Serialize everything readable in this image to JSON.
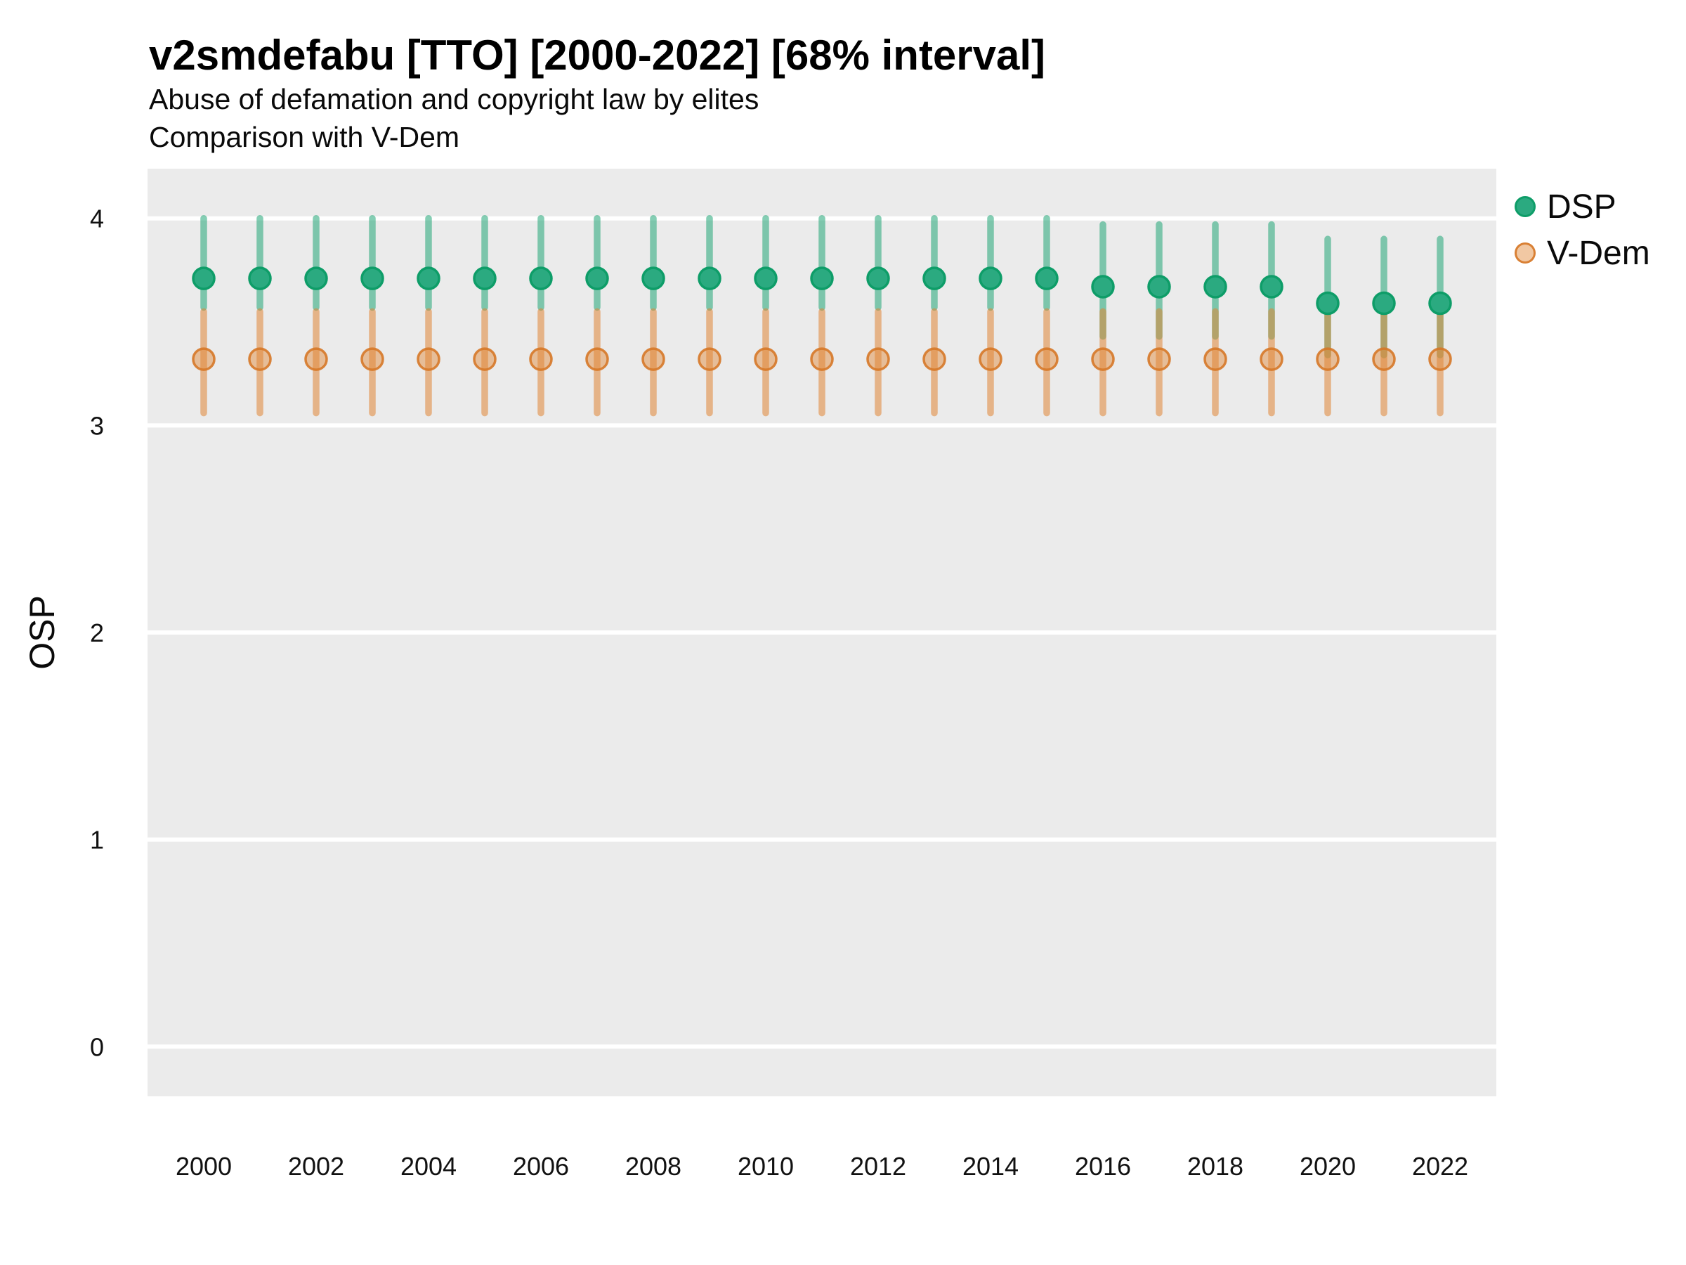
{
  "chart_data": {
    "type": "pointrange",
    "title": "v2smdefabu [TTO] [2000-2022] [68% interval]",
    "subtitle": "Abuse of defamation and copyright law by elites",
    "subtitle2": "Comparison with V-Dem",
    "ylabel": "OSP",
    "xlabel": "",
    "interval": "68%",
    "xlim": [
      1999,
      2023
    ],
    "ylim": [
      -0.24,
      4.24
    ],
    "xticks": [
      2000,
      2002,
      2004,
      2006,
      2008,
      2010,
      2012,
      2014,
      2016,
      2018,
      2020,
      2022
    ],
    "yticks": [
      0,
      1,
      2,
      3,
      4
    ],
    "grid": "major-horizontal-only",
    "panel_bg": "#EBEBEB",
    "gridline_color": "#FFFFFF",
    "legend_position": "right",
    "series": [
      {
        "name": "DSP",
        "point_fill": "#2BAA80",
        "point_stroke": "#0E9D68",
        "line_color": "rgba(33,166,118,0.55)",
        "points": [
          {
            "year": 2000,
            "est": 3.71,
            "lo": 3.57,
            "hi": 4.0
          },
          {
            "year": 2001,
            "est": 3.71,
            "lo": 3.57,
            "hi": 4.0
          },
          {
            "year": 2002,
            "est": 3.71,
            "lo": 3.57,
            "hi": 4.0
          },
          {
            "year": 2003,
            "est": 3.71,
            "lo": 3.57,
            "hi": 4.0
          },
          {
            "year": 2004,
            "est": 3.71,
            "lo": 3.57,
            "hi": 4.0
          },
          {
            "year": 2005,
            "est": 3.71,
            "lo": 3.57,
            "hi": 4.0
          },
          {
            "year": 2006,
            "est": 3.71,
            "lo": 3.57,
            "hi": 4.0
          },
          {
            "year": 2007,
            "est": 3.71,
            "lo": 3.57,
            "hi": 4.0
          },
          {
            "year": 2008,
            "est": 3.71,
            "lo": 3.57,
            "hi": 4.0
          },
          {
            "year": 2009,
            "est": 3.71,
            "lo": 3.57,
            "hi": 4.0
          },
          {
            "year": 2010,
            "est": 3.71,
            "lo": 3.57,
            "hi": 4.0
          },
          {
            "year": 2011,
            "est": 3.71,
            "lo": 3.57,
            "hi": 4.0
          },
          {
            "year": 2012,
            "est": 3.71,
            "lo": 3.57,
            "hi": 4.0
          },
          {
            "year": 2013,
            "est": 3.71,
            "lo": 3.57,
            "hi": 4.0
          },
          {
            "year": 2014,
            "est": 3.71,
            "lo": 3.57,
            "hi": 4.0
          },
          {
            "year": 2015,
            "est": 3.71,
            "lo": 3.57,
            "hi": 4.0
          },
          {
            "year": 2016,
            "est": 3.67,
            "lo": 3.43,
            "hi": 3.97
          },
          {
            "year": 2017,
            "est": 3.67,
            "lo": 3.43,
            "hi": 3.97
          },
          {
            "year": 2018,
            "est": 3.67,
            "lo": 3.43,
            "hi": 3.97
          },
          {
            "year": 2019,
            "est": 3.67,
            "lo": 3.43,
            "hi": 3.97
          },
          {
            "year": 2020,
            "est": 3.59,
            "lo": 3.34,
            "hi": 3.9
          },
          {
            "year": 2021,
            "est": 3.59,
            "lo": 3.34,
            "hi": 3.9
          },
          {
            "year": 2022,
            "est": 3.59,
            "lo": 3.34,
            "hi": 3.9
          }
        ]
      },
      {
        "name": "V-Dem",
        "point_fill": "rgba(224,133,52,0.45)",
        "point_stroke": "rgba(214,120,40,0.9)",
        "line_color": "rgba(224,133,52,0.55)",
        "points": [
          {
            "year": 2000,
            "est": 3.32,
            "lo": 3.06,
            "hi": 3.55
          },
          {
            "year": 2001,
            "est": 3.32,
            "lo": 3.06,
            "hi": 3.55
          },
          {
            "year": 2002,
            "est": 3.32,
            "lo": 3.06,
            "hi": 3.55
          },
          {
            "year": 2003,
            "est": 3.32,
            "lo": 3.06,
            "hi": 3.55
          },
          {
            "year": 2004,
            "est": 3.32,
            "lo": 3.06,
            "hi": 3.55
          },
          {
            "year": 2005,
            "est": 3.32,
            "lo": 3.06,
            "hi": 3.55
          },
          {
            "year": 2006,
            "est": 3.32,
            "lo": 3.06,
            "hi": 3.55
          },
          {
            "year": 2007,
            "est": 3.32,
            "lo": 3.06,
            "hi": 3.55
          },
          {
            "year": 2008,
            "est": 3.32,
            "lo": 3.06,
            "hi": 3.55
          },
          {
            "year": 2009,
            "est": 3.32,
            "lo": 3.06,
            "hi": 3.55
          },
          {
            "year": 2010,
            "est": 3.32,
            "lo": 3.06,
            "hi": 3.55
          },
          {
            "year": 2011,
            "est": 3.32,
            "lo": 3.06,
            "hi": 3.55
          },
          {
            "year": 2012,
            "est": 3.32,
            "lo": 3.06,
            "hi": 3.55
          },
          {
            "year": 2013,
            "est": 3.32,
            "lo": 3.06,
            "hi": 3.55
          },
          {
            "year": 2014,
            "est": 3.32,
            "lo": 3.06,
            "hi": 3.55
          },
          {
            "year": 2015,
            "est": 3.32,
            "lo": 3.06,
            "hi": 3.55
          },
          {
            "year": 2016,
            "est": 3.32,
            "lo": 3.06,
            "hi": 3.55
          },
          {
            "year": 2017,
            "est": 3.32,
            "lo": 3.06,
            "hi": 3.55
          },
          {
            "year": 2018,
            "est": 3.32,
            "lo": 3.06,
            "hi": 3.55
          },
          {
            "year": 2019,
            "est": 3.32,
            "lo": 3.06,
            "hi": 3.55
          },
          {
            "year": 2020,
            "est": 3.32,
            "lo": 3.06,
            "hi": 3.55
          },
          {
            "year": 2021,
            "est": 3.32,
            "lo": 3.06,
            "hi": 3.55
          },
          {
            "year": 2022,
            "est": 3.32,
            "lo": 3.06,
            "hi": 3.55
          }
        ]
      }
    ]
  }
}
